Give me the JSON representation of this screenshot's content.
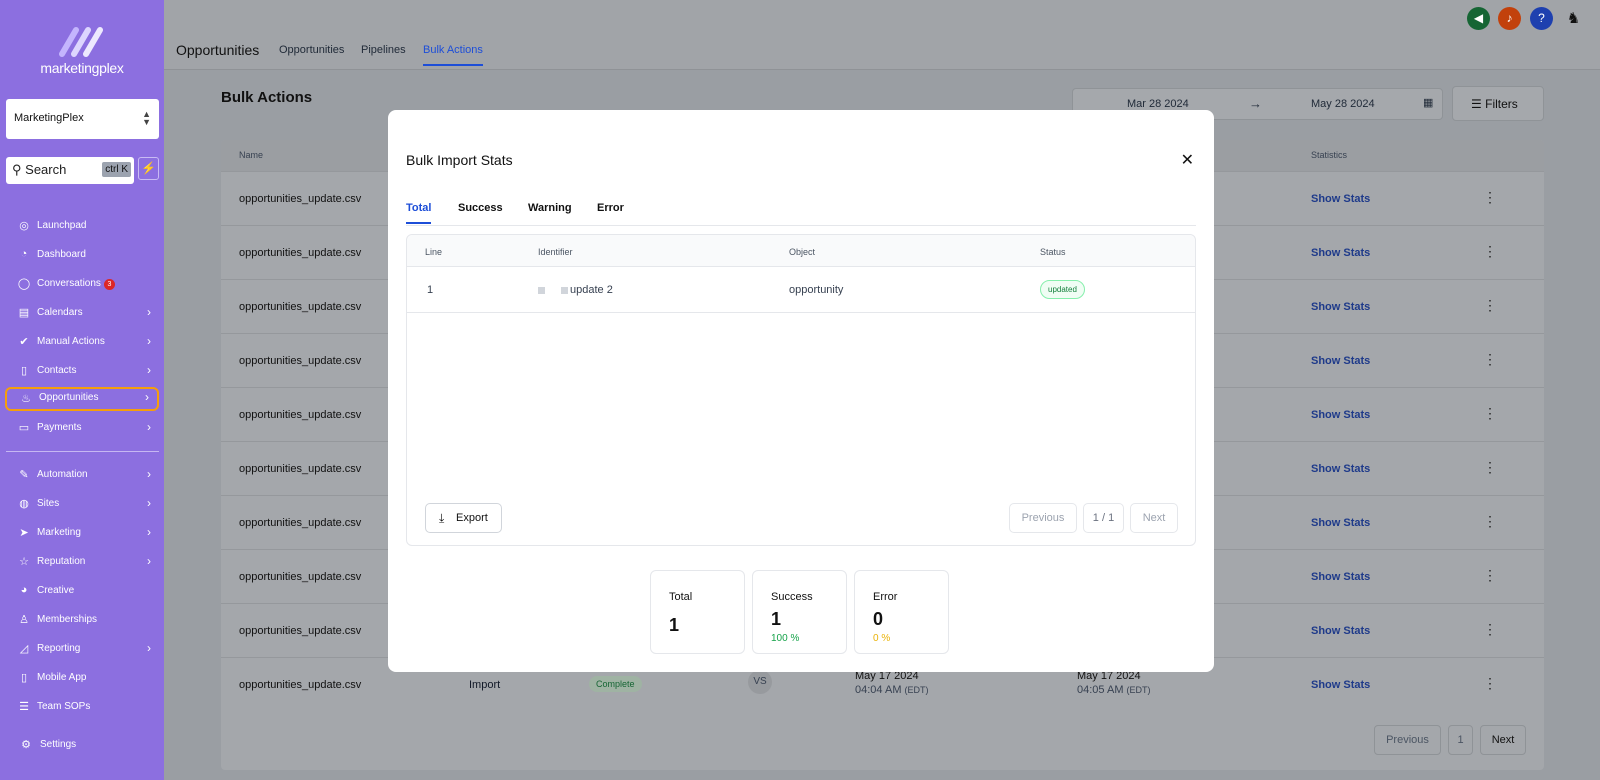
{
  "brand": {
    "name": "marketingplex"
  },
  "sidebar": {
    "account": "MarketingPlex",
    "search": {
      "label": "Search",
      "shortcut": "ctrl K"
    },
    "items": [
      {
        "label": "Launchpad",
        "icon": "rocket-icon"
      },
      {
        "label": "Dashboard",
        "icon": "gauge-icon"
      },
      {
        "label": "Conversations",
        "icon": "chat-icon",
        "badge": "3"
      },
      {
        "label": "Calendars",
        "icon": "calendar-icon"
      },
      {
        "label": "Manual Actions",
        "icon": "check-icon"
      },
      {
        "label": "Contacts",
        "icon": "contacts-icon"
      },
      {
        "label": "Opportunities",
        "icon": "flame-icon"
      },
      {
        "label": "Payments",
        "icon": "card-icon"
      },
      {
        "label": "Automation",
        "icon": "wand-icon"
      },
      {
        "label": "Sites",
        "icon": "globe-icon"
      },
      {
        "label": "Marketing",
        "icon": "send-icon"
      },
      {
        "label": "Reputation",
        "icon": "star-icon"
      },
      {
        "label": "Creative",
        "icon": "palette-icon"
      },
      {
        "label": "Memberships",
        "icon": "member-icon"
      },
      {
        "label": "Reporting",
        "icon": "chart-icon"
      },
      {
        "label": "Mobile App",
        "icon": "phone-icon"
      },
      {
        "label": "Team SOPs",
        "icon": "list-icon"
      },
      {
        "label": "Settings",
        "icon": "gear-icon"
      }
    ]
  },
  "topbar": {
    "title": "Opportunities",
    "tabs": [
      "Opportunities",
      "Pipelines",
      "Bulk Actions"
    ],
    "active_tab": "Bulk Actions"
  },
  "main": {
    "title": "Bulk Actions",
    "date_from": "Mar 28 2024",
    "date_to": "May 28 2024",
    "filters_label": "Filters",
    "columns": {
      "name": "Name",
      "statistics": "Statistics"
    },
    "rows": [
      {
        "name": "opportunities_update.csv",
        "stats": "Show Stats"
      },
      {
        "name": "opportunities_update.csv",
        "stats": "Show Stats"
      },
      {
        "name": "opportunities_update.csv",
        "stats": "Show Stats"
      },
      {
        "name": "opportunities_update.csv",
        "stats": "Show Stats"
      },
      {
        "name": "opportunities_update.csv",
        "stats": "Show Stats"
      },
      {
        "name": "opportunities_update.csv",
        "stats": "Show Stats"
      },
      {
        "name": "opportunities_update.csv",
        "stats": "Show Stats"
      },
      {
        "name": "opportunities_update.csv",
        "stats": "Show Stats"
      },
      {
        "name": "opportunities_update.csv",
        "stats": "Show Stats"
      },
      {
        "name": "opportunities_update.csv",
        "stats": "Show Stats",
        "type": "Import",
        "status": "Complete",
        "user": "VS",
        "created_date": "May 17 2024",
        "created_time": "04:04 AM",
        "created_tz": "(EDT)",
        "completed_date": "May 17 2024",
        "completed_time": "04:05 AM",
        "completed_tz": "(EDT)"
      }
    ],
    "pagination": {
      "previous": "Previous",
      "page": "1",
      "next": "Next"
    }
  },
  "modal": {
    "title": "Bulk Import Stats",
    "tabs": [
      "Total",
      "Success",
      "Warning",
      "Error"
    ],
    "active_tab": "Total",
    "columns": [
      "Line",
      "Identifier",
      "Object",
      "Status"
    ],
    "rows": [
      {
        "line": "1",
        "identifier": "update 2",
        "object": "opportunity",
        "status": "updated"
      }
    ],
    "export_label": "Export",
    "pagination": {
      "previous": "Previous",
      "page": "1 / 1",
      "next": "Next"
    },
    "stats": [
      {
        "label": "Total",
        "value": "1",
        "percent": ""
      },
      {
        "label": "Success",
        "value": "1",
        "percent": "100 %"
      },
      {
        "label": "Error",
        "value": "0",
        "percent": "0 %"
      }
    ]
  },
  "colors": {
    "sidebar_bg": "#8c6fe0",
    "accent": "#1d4ed8",
    "success": "#16a34a",
    "warning": "#eab308"
  }
}
